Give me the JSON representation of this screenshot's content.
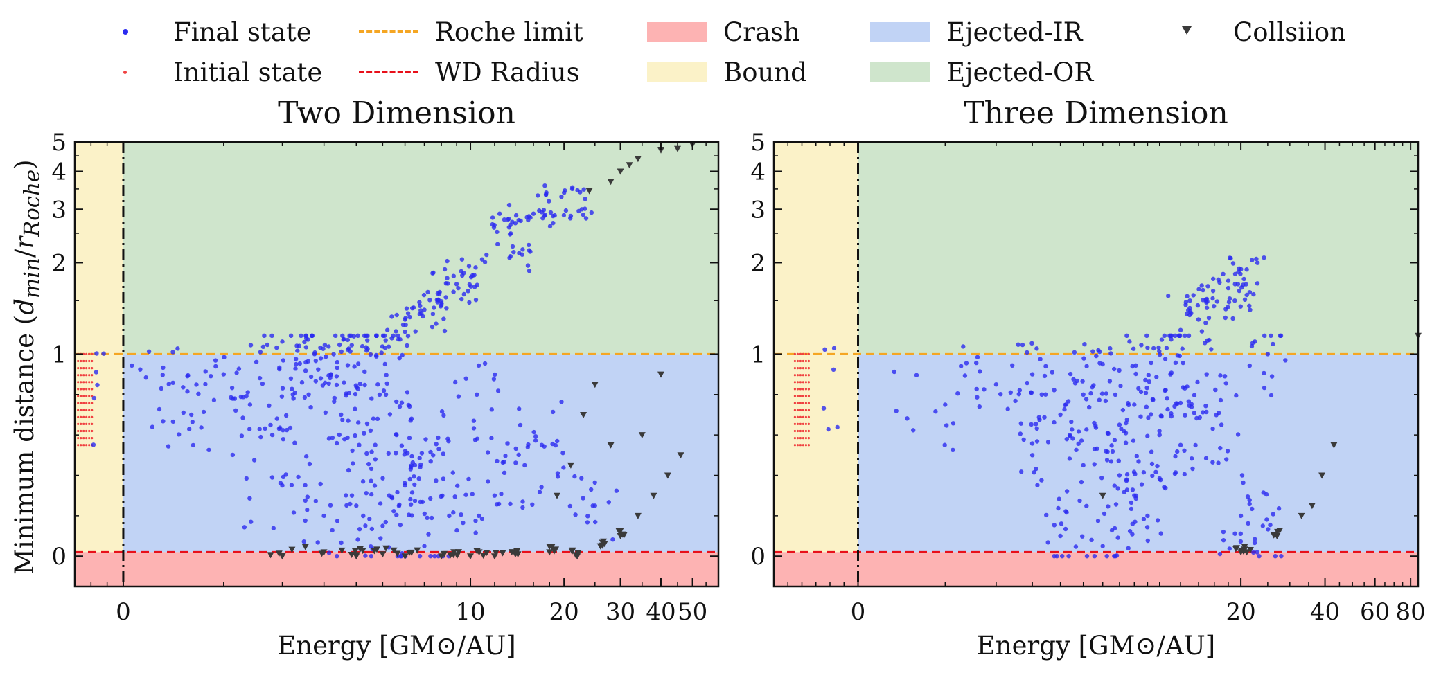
{
  "legend": {
    "items": [
      {
        "label": "Final state",
        "kind": "dot",
        "color": "#2b2bf0"
      },
      {
        "label": "Initial state",
        "kind": "dot-small",
        "color": "#f04040"
      },
      {
        "label": "Roche limit",
        "kind": "dash",
        "color": "#f5a623"
      },
      {
        "label": "WD Radius",
        "kind": "dash",
        "color": "#e8101a"
      },
      {
        "label": "Crash",
        "kind": "patch",
        "color": "#fdb3b3"
      },
      {
        "label": "Bound",
        "kind": "patch",
        "color": "#fbf2c8"
      },
      {
        "label": "Ejected-IR",
        "kind": "patch",
        "color": "#c1d3f5"
      },
      {
        "label": "Ejected-OR",
        "kind": "patch",
        "color": "#cfe5cc"
      },
      {
        "label": "Collsiion",
        "kind": "triangle",
        "color": "#3a3a3a"
      }
    ]
  },
  "y_axis_label": "Minimum distance (d_min / r_Roche)",
  "x_axis_label": "Energy [GM⊙/AU]",
  "chart_data": [
    {
      "type": "scatter",
      "title": "Two Dimension",
      "xlabel": "Energy [GM⊙/AU]",
      "ylabel": "Minimum distance (d_min / r_Roche)",
      "x_ticks": [
        "0",
        "10",
        "20",
        "30",
        "40",
        "50"
      ],
      "x_tick_values": [
        0,
        10,
        20,
        30,
        40,
        50
      ],
      "xlim": [
        -3,
        60
      ],
      "y_ticks": [
        "0",
        "1",
        "2",
        "3",
        "4",
        "5"
      ],
      "y_tick_values": [
        0,
        1,
        2,
        3,
        4,
        5
      ],
      "ylim": [
        -0.15,
        5
      ],
      "regions": {
        "crash_below": 0.02,
        "roche_limit": 1.0,
        "wd_radius": 0.02,
        "bound_energy_max": 0
      },
      "series": [
        {
          "name": "Final state",
          "points_sampled": [
            [
              0.3,
              0.83
            ],
            [
              0.6,
              0.7
            ],
            [
              1.0,
              0.9
            ],
            [
              1.4,
              0.75
            ],
            [
              1.8,
              0.6
            ],
            [
              2.0,
              1.1
            ],
            [
              2.3,
              0.95
            ],
            [
              2.6,
              0.8
            ],
            [
              2.9,
              1.05
            ],
            [
              3.2,
              0.9
            ],
            [
              3.5,
              0.7
            ],
            [
              3.8,
              1.02
            ],
            [
              4.1,
              0.55
            ],
            [
              4.4,
              1.15
            ],
            [
              4.8,
              0.85
            ],
            [
              5.2,
              1.2
            ],
            [
              5.6,
              0.6
            ],
            [
              6.0,
              1.3
            ],
            [
              6.5,
              0.45
            ],
            [
              7.0,
              1.4
            ],
            [
              7.5,
              0.5
            ],
            [
              8.0,
              1.45
            ],
            [
              9.0,
              1.7
            ],
            [
              9.5,
              1.85
            ],
            [
              10.5,
              0.8
            ],
            [
              12,
              0.3
            ],
            [
              13.5,
              2.1
            ],
            [
              14,
              2.7
            ],
            [
              16,
              2.9
            ],
            [
              20,
              3.4
            ],
            [
              21,
              2.85
            ],
            [
              2.0,
              0.35
            ],
            [
              3.0,
              0.2
            ],
            [
              4.0,
              0.25
            ],
            [
              5.0,
              0.15
            ],
            [
              6.0,
              0.35
            ],
            [
              7.0,
              0.05
            ],
            [
              8.5,
              0.2
            ],
            [
              15,
              0.45
            ],
            [
              17,
              0.55
            ],
            [
              25,
              0.25
            ]
          ]
        },
        {
          "name": "Initial state",
          "bound_block": {
            "x_range": [
              -2.8,
              -1.8
            ],
            "y_range": [
              0.55,
              1.0
            ]
          }
        },
        {
          "name": "Collsiion",
          "points_sampled": [
            [
              2,
              0.0
            ],
            [
              3,
              0.02
            ],
            [
              4,
              0.0
            ],
            [
              5,
              0.01
            ],
            [
              6,
              0.0
            ],
            [
              8,
              0.0
            ],
            [
              10,
              0.0
            ],
            [
              12,
              0.0
            ],
            [
              14,
              0.01
            ],
            [
              18,
              0.02
            ],
            [
              22,
              0.0
            ],
            [
              26,
              0.05
            ],
            [
              30,
              0.1
            ],
            [
              34,
              0.2
            ],
            [
              38,
              0.3
            ],
            [
              42,
              0.4
            ],
            [
              46,
              0.5
            ],
            [
              19,
              0.3
            ],
            [
              21,
              0.45
            ],
            [
              23,
              0.7
            ],
            [
              25,
              0.85
            ],
            [
              28,
              0.55
            ],
            [
              35,
              0.6
            ],
            [
              40,
              0.9
            ],
            [
              24,
              3.45
            ],
            [
              28,
              3.7
            ],
            [
              30,
              4.0
            ],
            [
              32,
              4.2
            ],
            [
              34,
              4.4
            ],
            [
              40,
              4.7
            ],
            [
              45,
              4.75
            ],
            [
              50,
              4.9
            ]
          ]
        }
      ]
    },
    {
      "type": "scatter",
      "title": "Three Dimension",
      "xlabel": "Energy [GM⊙/AU]",
      "ylabel": "",
      "x_ticks": [
        "0",
        "20",
        "40",
        "60",
        "80"
      ],
      "x_tick_values": [
        0,
        20,
        40,
        60,
        80
      ],
      "xlim": [
        -6,
        85
      ],
      "y_ticks": [
        "0",
        "1",
        "2",
        "3",
        "4",
        "5"
      ],
      "y_tick_values": [
        0,
        1,
        2,
        3,
        4,
        5
      ],
      "ylim": [
        -0.15,
        5
      ],
      "regions": {
        "crash_below": 0.02,
        "roche_limit": 1.0,
        "wd_radius": 0.02,
        "bound_energy_max": 0
      },
      "series": [
        {
          "name": "Final state",
          "points_sampled": [
            [
              1,
              0.75
            ],
            [
              2,
              0.85
            ],
            [
              3,
              0.9
            ],
            [
              4,
              0.7
            ],
            [
              5,
              0.8
            ],
            [
              6,
              0.95
            ],
            [
              7,
              0.65
            ],
            [
              8,
              0.75
            ],
            [
              9,
              1.05
            ],
            [
              10,
              0.6
            ],
            [
              11,
              0.9
            ],
            [
              12,
              0.55
            ],
            [
              3,
              0.5
            ],
            [
              5,
              0.45
            ],
            [
              7,
              0.4
            ],
            [
              8,
              0.3
            ],
            [
              9,
              0.2
            ],
            [
              4,
              0.1
            ],
            [
              6,
              0.05
            ],
            [
              12,
              1.2
            ],
            [
              13,
              1.5
            ],
            [
              14,
              1.3
            ],
            [
              18,
              1.65
            ],
            [
              21,
              1.9
            ],
            [
              19,
              1.5
            ],
            [
              15,
              0.9
            ],
            [
              17,
              0.65
            ],
            [
              20,
              0.2
            ],
            [
              24,
              0.15
            ],
            [
              25,
              1.0
            ]
          ]
        },
        {
          "name": "Initial state",
          "bound_block": {
            "x_range": [
              -4.5,
              -3.5
            ],
            "y_range": [
              0.55,
              1.0
            ]
          }
        },
        {
          "name": "Collsiion",
          "points_sampled": [
            [
              6,
              0.3
            ],
            [
              20,
              0.02
            ],
            [
              21,
              0.02
            ],
            [
              27,
              0.1
            ],
            [
              33,
              0.2
            ],
            [
              36,
              0.25
            ],
            [
              39,
              0.4
            ],
            [
              43,
              0.55
            ],
            [
              85,
              1.15
            ]
          ]
        }
      ]
    }
  ]
}
